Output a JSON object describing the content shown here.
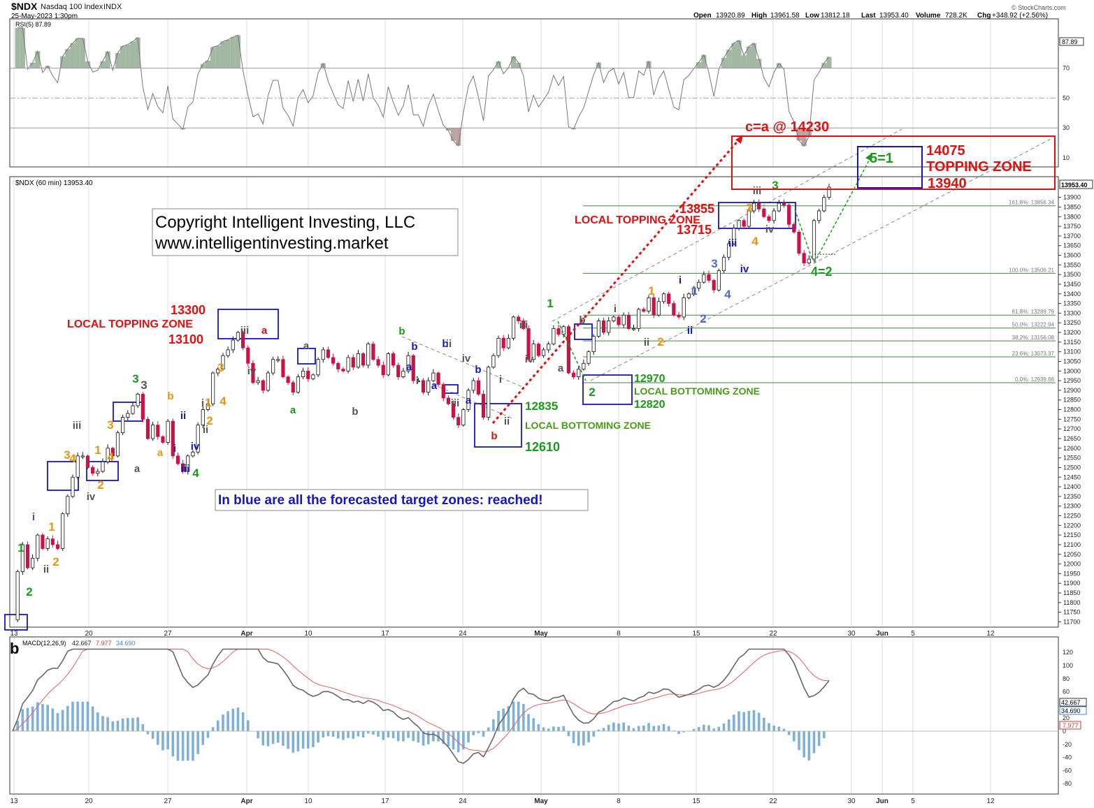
{
  "header": {
    "symbol": "$NDX",
    "name": "Nasdaq 100 Index",
    "exchange": "INDX",
    "date": "25-May-2023 1:30pm",
    "open_label": "Open",
    "open": "13920.89",
    "high_label": "High",
    "high": "13961.58",
    "low_label": "Low",
    "low": "13812.18",
    "last_label": "Last",
    "last": "13953.40",
    "volume_label": "Volume",
    "volume": "728.2K",
    "chg_label": "Chg",
    "chg": "+348.92 (+2.56%)",
    "brand": "© StockCharts.com"
  },
  "rsi": {
    "label": "RSI(5) 87.89",
    "value_box": "87.89",
    "ticks": [
      {
        "v": 70,
        "t": "70"
      },
      {
        "v": 50,
        "t": "50"
      },
      {
        "v": 30,
        "t": "30"
      },
      {
        "v": 10,
        "t": "10"
      }
    ]
  },
  "price": {
    "label": "$NDX (60 min) 13953.40",
    "last_box": "13953.40",
    "ylim": [
      11680,
      14000
    ],
    "ticks": [
      11700,
      11750,
      11800,
      11850,
      11900,
      11950,
      12000,
      12050,
      12100,
      12150,
      12200,
      12250,
      12300,
      12350,
      12400,
      12450,
      12500,
      12550,
      12600,
      12650,
      12700,
      12750,
      12800,
      12850,
      12900,
      12950,
      13000,
      13050,
      13100,
      13150,
      13200,
      13250,
      13300,
      13350,
      13400,
      13450,
      13500,
      13550,
      13600,
      13650,
      13700,
      13750,
      13800,
      13850,
      13900
    ],
    "fib_levels": [
      {
        "v": 13856.34,
        "t": "161.8%: 13856.34"
      },
      {
        "v": 13506.21,
        "t": "100.0%: 13506.21"
      },
      {
        "v": 13289.79,
        "t": "61.8%: 13289.79"
      },
      {
        "v": 13222.94,
        "t": "50.0%: 13222.94"
      },
      {
        "v": 13156.08,
        "t": "38.2%: 13156.08"
      },
      {
        "v": 13073.37,
        "t": "23.6%: 13073.37"
      },
      {
        "v": 12939.66,
        "t": "0.0%: 12939.66"
      }
    ],
    "close_path": [
      11710,
      11960,
      12100,
      11980,
      12030,
      12150,
      12080,
      12130,
      12100,
      12080,
      12260,
      12350,
      12450,
      12560,
      12560,
      12500,
      12470,
      12480,
      12530,
      12600,
      12560,
      12680,
      12760,
      12780,
      12820,
      12880,
      12750,
      12650,
      12720,
      12660,
      12630,
      12740,
      12560,
      12520,
      12480,
      12560,
      12580,
      12720,
      12800,
      12830,
      12990,
      13010,
      13080,
      13110,
      13160,
      13200,
      13120,
      13040,
      12940,
      12950,
      12900,
      12990,
      13060,
      13060,
      12970,
      12940,
      12890,
      12970,
      13000,
      12960,
      12980,
      13060,
      13110,
      13070,
      13040,
      13010,
      13000,
      13070,
      13020,
      13090,
      13030,
      13140,
      13060,
      13030,
      12980,
      13090,
      13030,
      12970,
      13000,
      13080,
      12950,
      12950,
      12890,
      12950,
      12990,
      12930,
      12860,
      12830,
      12760,
      12720,
      12800,
      12900,
      12950,
      12880,
      12760,
      13020,
      13080,
      13170,
      13120,
      13170,
      13280,
      13260,
      13220,
      13060,
      13140,
      13080,
      13110,
      13140,
      13220,
      13190,
      13230,
      12990,
      12970,
      13010,
      13040,
      13100,
      13180,
      13260,
      13200,
      13260,
      13280,
      13240,
      13290,
      13220,
      13220,
      13320,
      13310,
      13380,
      13290,
      13360,
      13400,
      13350,
      13290,
      13280,
      13380,
      13400,
      13430,
      13460,
      13500,
      13470,
      13420,
      13520,
      13590,
      13660,
      13740,
      13780,
      13750,
      13830,
      13870,
      13840,
      13800,
      13780,
      13830,
      13870,
      13860,
      13760,
      13720,
      13610,
      13560,
      13580,
      13780,
      13830,
      13900,
      13953
    ]
  },
  "date_axis": [
    "13",
    "20",
    "27",
    "Apr",
    "10",
    "17",
    "24",
    "May",
    "8",
    "15",
    "22",
    "30",
    "Jun",
    "5",
    "12"
  ],
  "macd": {
    "label_prefix": "MACD(12,26,9)",
    "v1": "42.667",
    "v2": "7.977",
    "v3": "34.690",
    "ticks": [
      {
        "v": 120,
        "t": "120"
      },
      {
        "v": 100,
        "t": "100"
      },
      {
        "v": 80,
        "t": "80"
      },
      {
        "v": 60,
        "t": "60"
      },
      {
        "v": 40,
        "t": "40"
      },
      {
        "v": 20,
        "t": "20"
      },
      {
        "v": 0,
        "t": "0"
      },
      {
        "v": -20,
        "t": "-20"
      },
      {
        "v": -40,
        "t": "-40"
      },
      {
        "v": -60,
        "t": "-60"
      },
      {
        "v": -80,
        "t": "-80"
      }
    ]
  },
  "watermark": {
    "line1": "Copyright Intelligent Investing, LLC",
    "line2": "www.intelligentinvesting.market"
  },
  "notes": {
    "blue_zones": "In blue are all the forecasted target zones: reached!",
    "c_eq_a": "c=a @ 14230",
    "zone_top": "14075",
    "topping_zone": "TOPPING ZONE",
    "zone_bottom": "13940",
    "five_eq_one": "5=1",
    "local_top_1_hi": "13300",
    "local_top_1_label": "LOCAL TOPPING ZONE",
    "local_top_1_lo": "13100",
    "local_top_2_hi": "13855",
    "local_top_2_label": "LOCAL TOPPING ZONE",
    "local_top_2_lo": "13715",
    "local_bot_1_hi": "12835",
    "local_bot_1_label": "LOCAL BOTTOMING ZONE",
    "local_bot_1_lo": "12610",
    "local_bot_2_hi": "12970",
    "local_bot_2_label": "LOCAL BOTTOMING ZONE",
    "local_bot_2_lo": "12820",
    "four_eq_two": "4=2",
    "panel_b": "b"
  },
  "wave_labels": [
    {
      "t": "1",
      "c": "#1a9a1a"
    },
    {
      "t": "2",
      "c": "#1a9a1a"
    },
    {
      "t": "i",
      "c": "#555555"
    },
    {
      "t": "ii",
      "c": "#555555"
    },
    {
      "t": "1",
      "c": "#e8960c"
    },
    {
      "t": "2",
      "c": "#e8960c"
    },
    {
      "t": "3",
      "c": "#e8960c"
    },
    {
      "t": "4",
      "c": "#e8960c"
    },
    {
      "t": "iii",
      "c": "#555555"
    },
    {
      "t": "iv",
      "c": "#555555"
    },
    {
      "t": "1",
      "c": "#e8960c"
    },
    {
      "t": "2",
      "c": "#e8960c"
    },
    {
      "t": "3",
      "c": "#e8960c"
    },
    {
      "t": "4",
      "c": "#e8960c"
    },
    {
      "t": "3",
      "c": "#1a9a1a"
    },
    {
      "t": "3",
      "c": "#555555"
    },
    {
      "t": "a",
      "c": "#555555"
    },
    {
      "t": "b",
      "c": "#e8960c"
    },
    {
      "t": "a",
      "c": "#e8960c"
    },
    {
      "t": "ii",
      "c": "#1515c8"
    },
    {
      "t": "i",
      "c": "#1515c8"
    },
    {
      "t": "iii",
      "c": "#1515c8"
    },
    {
      "t": "iv",
      "c": "#1515c8"
    },
    {
      "t": "4",
      "c": "#1a9a1a"
    },
    {
      "t": "i",
      "c": "#555555"
    },
    {
      "t": "1",
      "c": "#e8960c"
    },
    {
      "t": "2",
      "c": "#e8960c"
    },
    {
      "t": "ii",
      "c": "#555555"
    },
    {
      "t": "3",
      "c": "#e8960c"
    },
    {
      "t": "4",
      "c": "#e8960c"
    },
    {
      "t": "iii",
      "c": "#555555"
    },
    {
      "t": "a",
      "c": "#dd1111"
    },
    {
      "t": "iv",
      "c": "#555555"
    },
    {
      "t": "a",
      "c": "#1a9a1a"
    },
    {
      "t": "a",
      "c": "#555555"
    },
    {
      "t": "b",
      "c": "#555555"
    },
    {
      "t": "b",
      "c": "#1a9a1a"
    },
    {
      "t": "b",
      "c": "#1515c8"
    },
    {
      "t": "a",
      "c": "#1515c8"
    },
    {
      "t": "i",
      "c": "#555555"
    },
    {
      "t": "b",
      "c": "#1515c8"
    },
    {
      "t": "ii",
      "c": "#555555"
    },
    {
      "t": "a",
      "c": "#1515c8"
    },
    {
      "t": "iii",
      "c": "#555555"
    },
    {
      "t": "iv",
      "c": "#555555"
    },
    {
      "t": "b",
      "c": "#1515c8"
    },
    {
      "t": "a",
      "c": "#1515c8"
    },
    {
      "t": "i",
      "c": "#555555"
    },
    {
      "t": "ii",
      "c": "#555555"
    },
    {
      "t": "b",
      "c": "#dd1111"
    },
    {
      "t": "iii",
      "c": "#555555"
    },
    {
      "t": "iv",
      "c": "#555555"
    },
    {
      "t": "1",
      "c": "#1a9a1a"
    },
    {
      "t": "a",
      "c": "#555555"
    },
    {
      "t": "b",
      "c": "#555555"
    },
    {
      "t": "2",
      "c": "#1a9a1a"
    },
    {
      "t": "i",
      "c": "#555555"
    },
    {
      "t": "ii",
      "c": "#555555"
    },
    {
      "t": "1",
      "c": "#e8960c"
    },
    {
      "t": "2",
      "c": "#e8960c"
    },
    {
      "t": "i",
      "c": "#1515c8"
    },
    {
      "t": "1",
      "c": "#4a6ad8"
    },
    {
      "t": "ii",
      "c": "#1515c8"
    },
    {
      "t": "2",
      "c": "#4a6ad8"
    },
    {
      "t": "3",
      "c": "#4a6ad8"
    },
    {
      "t": "4",
      "c": "#4a6ad8"
    },
    {
      "t": "iii",
      "c": "#1515c8"
    },
    {
      "t": "iv",
      "c": "#1515c8"
    },
    {
      "t": "3",
      "c": "#e8960c"
    },
    {
      "t": "4",
      "c": "#e8960c"
    },
    {
      "t": "iii",
      "c": "#555555"
    },
    {
      "t": "3",
      "c": "#1a9a1a"
    },
    {
      "t": "iv",
      "c": "#555555"
    }
  ]
}
